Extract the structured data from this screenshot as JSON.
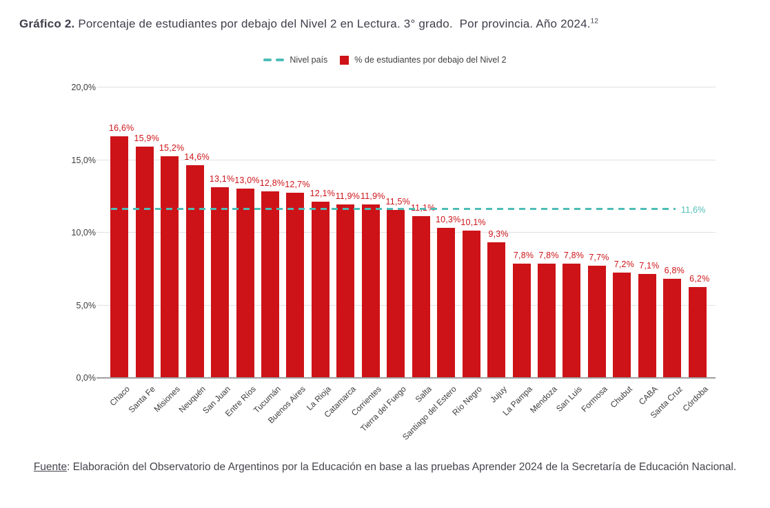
{
  "title": {
    "bold": "Gráfico 2.",
    "text": " Porcentaje de estudiantes por debajo del Nivel 2 en Lectura. 3° grado.  Por provincia. Año 2024.",
    "superscript": "12"
  },
  "legend": {
    "reference_label": "Nivel país",
    "series_label": "% de estudiantes por debajo del Nivel 2"
  },
  "chart_data": {
    "type": "bar",
    "title": "Porcentaje de estudiantes por debajo del Nivel 2 en Lectura. 3° grado. Por provincia. Año 2024.",
    "categories": [
      "Chaco",
      "Santa Fe",
      "Misiones",
      "Neuquén",
      "San Juan",
      "Entre Ríos",
      "Tucumán",
      "Buenos Aires",
      "La Rioja",
      "Catamarca",
      "Corrientes",
      "Tierra del Fuego",
      "Salta",
      "Santiago del Estero",
      "Río Negro",
      "Jujuy",
      "La Pampa",
      "Mendoza",
      "San Luis",
      "Formosa",
      "Chubut",
      "CABA",
      "Santa Cruz",
      "Córdoba"
    ],
    "values": [
      16.6,
      15.9,
      15.2,
      14.6,
      13.1,
      13.0,
      12.8,
      12.7,
      12.1,
      11.9,
      11.9,
      11.5,
      11.1,
      10.3,
      10.1,
      9.3,
      7.8,
      7.8,
      7.8,
      7.7,
      7.2,
      7.1,
      6.8,
      6.2
    ],
    "value_labels": [
      "16,6%",
      "15,9%",
      "15,2%",
      "14,6%",
      "13,1%",
      "13,0%",
      "12,8%",
      "12,7%",
      "12,1%",
      "11,9%",
      "11,9%",
      "11,5%",
      "11,1%",
      "10,3%",
      "10,1%",
      "9,3%",
      "7,8%",
      "7,8%",
      "7,8%",
      "7,7%",
      "7,2%",
      "7,1%",
      "6,8%",
      "6,2%"
    ],
    "reference_line": {
      "value": 11.6,
      "label": "11,6%",
      "name": "Nivel país"
    },
    "y_ticks": [
      "0,0%",
      "5,0%",
      "10,0%",
      "15,0%",
      "20,0%"
    ],
    "y_tick_values": [
      0,
      5,
      10,
      15,
      20
    ],
    "ylim": [
      0,
      20
    ],
    "grid": true,
    "legend_position": "top",
    "xlabel": "",
    "ylabel": "",
    "bar_color": "#cd1318",
    "reference_color": "#4dbdb7"
  },
  "footer": {
    "label": "Fuente",
    "text": ": Elaboración del Observatorio de Argentinos por la Educación en base a las pruebas Aprender 2024 de la Secretaría de Educación Nacional."
  }
}
